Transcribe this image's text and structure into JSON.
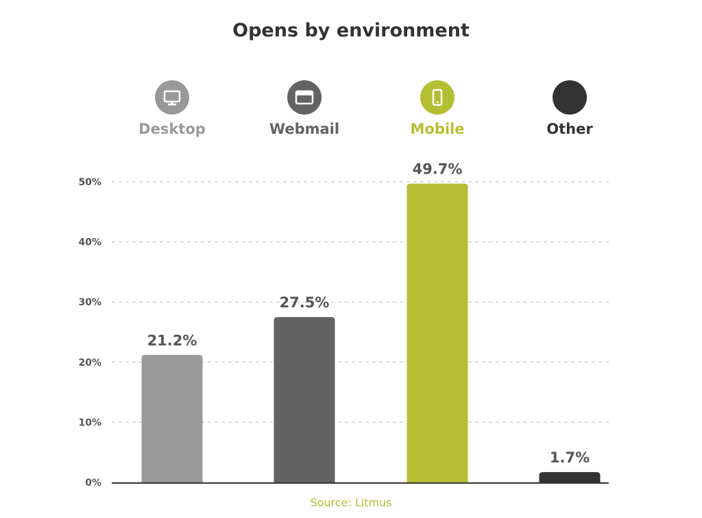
{
  "chart_data": {
    "type": "bar",
    "title": "Opens by environment",
    "categories": [
      "Desktop",
      "Webmail",
      "Mobile",
      "Other"
    ],
    "values": [
      21.2,
      27.5,
      49.7,
      1.7
    ],
    "value_labels": [
      "21.2%",
      "27.5%",
      "49.7%",
      "1.7%"
    ],
    "colors": [
      "#999999",
      "#636363",
      "#b5be33",
      "#333333"
    ],
    "legend_icons": [
      "desktop-monitor-icon",
      "browser-window-icon",
      "mobile-phone-icon",
      ""
    ],
    "ylim": [
      0,
      50
    ],
    "yticks": [
      0,
      10,
      20,
      30,
      40,
      50
    ],
    "ytick_labels": [
      "0%",
      "10%",
      "20%",
      "30%",
      "40%",
      "50%"
    ],
    "grid": true,
    "legend_position": "top",
    "xlabel": "",
    "ylabel": "",
    "source": "Source: Litmus"
  }
}
